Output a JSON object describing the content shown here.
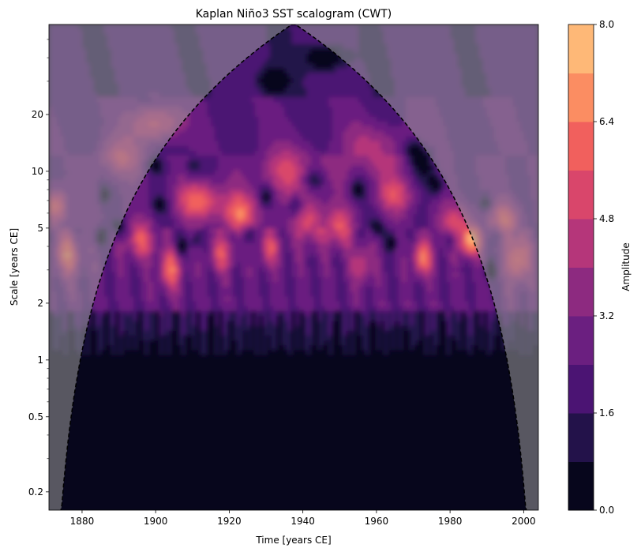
{
  "chart_data": {
    "type": "heatmap",
    "title": "Kaplan Niño3 SST scalogram (CWT)",
    "xlabel": "Time [years CE]",
    "ylabel": "Scale [years CE]",
    "x_ticks": [
      1880,
      1900,
      1920,
      1940,
      1960,
      1980,
      2000
    ],
    "x_range": [
      1871,
      2004
    ],
    "y_scale": "log",
    "y_ticks": [
      0.2,
      0.5,
      1,
      2,
      5,
      10,
      20
    ],
    "y_tick_labels": [
      "0.2",
      "0.5",
      "1",
      "2",
      "5",
      "10",
      "20"
    ],
    "y_range": [
      0.16,
      60
    ],
    "colorbar": {
      "label": "Amplitude",
      "levels": [
        0.0,
        0.8,
        1.6,
        2.4,
        3.2,
        4.0,
        4.8,
        5.6,
        6.4,
        7.2,
        8.0
      ],
      "tick_values": [
        0.0,
        1.6,
        3.2,
        4.8,
        6.4,
        8.0
      ],
      "tick_labels": [
        "0.0",
        "1.6",
        "3.2",
        "4.8",
        "6.4",
        "8.0"
      ],
      "colormap": "magma",
      "colors": [
        "#07061c",
        "#23124a",
        "#4b1473",
        "#6b1f80",
        "#8d2a80",
        "#b5367a",
        "#d9466b",
        "#f1605d",
        "#fb8d62",
        "#feb877",
        "#fde4a5"
      ]
    },
    "cone_of_influence": {
      "peak_year": 1937,
      "peak_scale": 60,
      "style": "dashed",
      "color": "#000000",
      "outside_shading": "translucent gray"
    },
    "features": [
      {
        "period_years": "2-7",
        "time": "1870-2004",
        "description": "strong ENSO band amplitude"
      },
      {
        "period_years": "3.5-5",
        "time": "1983-1988",
        "amplitude_max": 8.0
      },
      {
        "period_years": "5-8",
        "time": "1905-1930",
        "amplitude": 6.4
      },
      {
        "period_years": "<1",
        "time": "all",
        "amplitude": 0.4
      }
    ]
  }
}
